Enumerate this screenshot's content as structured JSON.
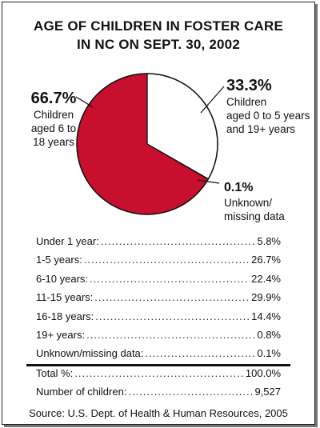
{
  "title_lines": [
    "AGE OF CHILDREN IN FOSTER CARE",
    "IN NC ON SEPT. 30, 2002"
  ],
  "chart_data": {
    "type": "pie",
    "slices": [
      {
        "label": "Children aged 0 to 5 years and 19+ years",
        "value": 33.3,
        "display": "33.3%",
        "color": "#ffffff"
      },
      {
        "label": "Unknown/missing data",
        "value": 0.1,
        "display": "0.1%",
        "color": "#ffffff"
      },
      {
        "label": "Children aged 6 to 18 years",
        "value": 66.7,
        "display": "66.7%",
        "color": "#c8102e"
      }
    ]
  },
  "labels": {
    "left": {
      "pct": "66.7%",
      "lines": [
        "Children",
        "aged 6 to",
        "18 years"
      ]
    },
    "right": {
      "pct": "33.3%",
      "lines": [
        "Children",
        "aged 0 to 5 years",
        "and 19+ years"
      ]
    },
    "small": {
      "pct": "0.1%",
      "lines": [
        "Unknown/",
        "missing data"
      ]
    }
  },
  "table": {
    "rows": [
      {
        "label": "Under 1 year:",
        "value": "5.8%"
      },
      {
        "label": "1-5 years:",
        "value": "26.7%"
      },
      {
        "label": "6-10 years:",
        "value": "22.4%"
      },
      {
        "label": "11-15 years:",
        "value": "29.9%"
      },
      {
        "label": "16-18 years:",
        "value": "14.4%"
      },
      {
        "label": "19+ years:",
        "value": "0.8%"
      },
      {
        "label": "Unknown/missing data:",
        "value": "0.1%"
      }
    ],
    "totals": [
      {
        "label": "Total %:",
        "value": "100.0%"
      },
      {
        "label": "Number of children:",
        "value": "9,527"
      }
    ]
  },
  "source": "Source: U.S. Dept. of Health & Human Resources, 2005"
}
